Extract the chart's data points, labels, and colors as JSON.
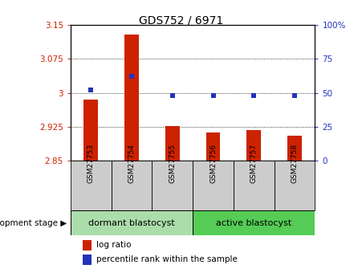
{
  "title": "GDS752 / 6971",
  "samples": [
    "GSM27753",
    "GSM27754",
    "GSM27755",
    "GSM27756",
    "GSM27757",
    "GSM27758"
  ],
  "log_ratio": [
    2.985,
    3.128,
    2.926,
    2.912,
    2.917,
    2.906
  ],
  "percentile_rank": [
    52,
    62,
    48,
    48,
    48,
    48
  ],
  "ylim_left": [
    2.85,
    3.15
  ],
  "ylim_right": [
    0,
    100
  ],
  "yticks_left": [
    2.85,
    2.925,
    3.0,
    3.075,
    3.15
  ],
  "yticks_right": [
    0,
    25,
    50,
    75,
    100
  ],
  "grid_lines": [
    2.925,
    3.0,
    3.075
  ],
  "bar_color": "#cc2200",
  "dot_color": "#2233bb",
  "bar_width": 0.35,
  "group1_label": "dormant blastocyst",
  "group2_label": "active blastocyst",
  "group1_color": "#aaddaa",
  "group2_color": "#55cc55",
  "group1_indices": [
    0,
    1,
    2
  ],
  "group2_indices": [
    3,
    4,
    5
  ],
  "left_tick_color": "#cc2200",
  "right_tick_color": "#2233bb",
  "legend_labels": [
    "log ratio",
    "percentile rank within the sample"
  ],
  "dev_stage_label": "development stage",
  "xtick_bg_color": "#cccccc",
  "title_fontsize": 10,
  "tick_labelsize": 7.5,
  "sample_fontsize": 6.5,
  "group_fontsize": 8
}
